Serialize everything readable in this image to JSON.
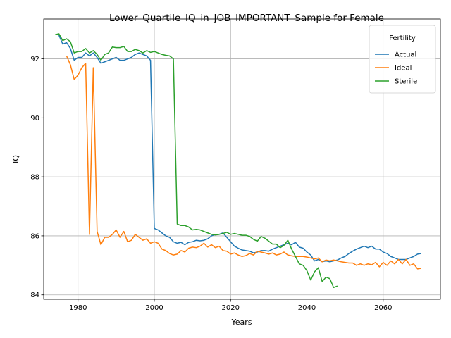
{
  "chart_data": {
    "type": "line",
    "title": "Lower_Quartile_IQ_in_JOB_IMPORTANT_Sample for Female",
    "xlabel": "Years",
    "ylabel": "IQ",
    "xlim": [
      1971,
      2075
    ],
    "ylim": [
      83.85,
      93.35
    ],
    "xticks": [
      1980,
      2000,
      2020,
      2040,
      2060
    ],
    "yticks": [
      84,
      86,
      88,
      90,
      92
    ],
    "grid": true,
    "legend": {
      "title": "Fertility",
      "placement": "top-right"
    },
    "series": [
      {
        "name": "Actual",
        "color": "#1f77b4",
        "x": [
          1975,
          1976,
          1977,
          1978,
          1979,
          1980,
          1981,
          1982,
          1983,
          1984,
          1985,
          1986,
          1987,
          1988,
          1989,
          1990,
          1991,
          1992,
          1993,
          1994,
          1995,
          1996,
          1997,
          1998,
          1999,
          2000,
          2001,
          2002,
          2003,
          2004,
          2005,
          2006,
          2007,
          2008,
          2009,
          2010,
          2011,
          2012,
          2013,
          2014,
          2015,
          2016,
          2017,
          2018,
          2019,
          2020,
          2021,
          2022,
          2023,
          2024,
          2025,
          2026,
          2027,
          2028,
          2029,
          2030,
          2031,
          2032,
          2033,
          2034,
          2035,
          2036,
          2037,
          2038,
          2039,
          2040,
          2041,
          2042,
          2043,
          2044,
          2045,
          2046,
          2047,
          2048,
          2049,
          2050,
          2051,
          2052,
          2053,
          2054,
          2055,
          2056,
          2057,
          2058,
          2059,
          2060,
          2061,
          2062,
          2063,
          2064,
          2065,
          2066,
          2067,
          2068,
          2069,
          2070
        ],
        "values": [
          92.8,
          92.5,
          92.55,
          92.35,
          91.95,
          92.05,
          92.05,
          92.2,
          92.1,
          92.2,
          92.05,
          91.85,
          91.9,
          91.95,
          92.0,
          92.05,
          91.95,
          91.95,
          92.0,
          92.05,
          92.15,
          92.2,
          92.15,
          92.1,
          91.95,
          86.25,
          86.2,
          86.1,
          86.0,
          85.95,
          85.8,
          85.75,
          85.78,
          85.7,
          85.78,
          85.8,
          85.85,
          85.83,
          85.85,
          85.9,
          86.0,
          86.05,
          86.05,
          86.1,
          85.95,
          85.8,
          85.65,
          85.58,
          85.52,
          85.5,
          85.48,
          85.42,
          85.45,
          85.5,
          85.5,
          85.48,
          85.55,
          85.6,
          85.65,
          85.7,
          85.75,
          85.7,
          85.78,
          85.62,
          85.58,
          85.45,
          85.35,
          85.15,
          85.2,
          85.12,
          85.15,
          85.12,
          85.15,
          85.18,
          85.25,
          85.3,
          85.4,
          85.48,
          85.55,
          85.6,
          85.65,
          85.6,
          85.65,
          85.55,
          85.55,
          85.45,
          85.4,
          85.3,
          85.25,
          85.2,
          85.2,
          85.2,
          85.25,
          85.3,
          85.38,
          85.4
        ]
      },
      {
        "name": "Ideal",
        "color": "#ff7f0e",
        "x": [
          1977,
          1978,
          1979,
          1980,
          1981,
          1982,
          1983,
          1984,
          1985,
          1986,
          1987,
          1988,
          1989,
          1990,
          1991,
          1992,
          1993,
          1994,
          1995,
          1996,
          1997,
          1998,
          1999,
          2000,
          2001,
          2002,
          2003,
          2004,
          2005,
          2006,
          2007,
          2008,
          2009,
          2010,
          2011,
          2012,
          2013,
          2014,
          2015,
          2016,
          2017,
          2018,
          2019,
          2020,
          2021,
          2022,
          2023,
          2024,
          2025,
          2026,
          2027,
          2028,
          2029,
          2030,
          2031,
          2032,
          2033,
          2034,
          2035,
          2036,
          2037,
          2038,
          2039,
          2040,
          2041,
          2042,
          2043,
          2044,
          2045,
          2046,
          2047,
          2048,
          2049,
          2050,
          2051,
          2052,
          2053,
          2054,
          2055,
          2056,
          2057,
          2058,
          2059,
          2060,
          2061,
          2062,
          2063,
          2064,
          2065,
          2066,
          2067,
          2068,
          2069,
          2070
        ],
        "values": [
          92.1,
          91.8,
          91.3,
          91.45,
          91.7,
          91.85,
          86.05,
          91.7,
          86.15,
          85.7,
          85.95,
          85.95,
          86.05,
          86.2,
          85.95,
          86.15,
          85.8,
          85.85,
          86.05,
          85.95,
          85.85,
          85.9,
          85.75,
          85.8,
          85.75,
          85.55,
          85.5,
          85.4,
          85.35,
          85.38,
          85.5,
          85.45,
          85.58,
          85.62,
          85.6,
          85.65,
          85.75,
          85.62,
          85.7,
          85.6,
          85.65,
          85.5,
          85.48,
          85.38,
          85.42,
          85.35,
          85.3,
          85.33,
          85.4,
          85.35,
          85.48,
          85.45,
          85.42,
          85.38,
          85.42,
          85.35,
          85.38,
          85.45,
          85.35,
          85.32,
          85.3,
          85.3,
          85.3,
          85.28,
          85.25,
          85.22,
          85.25,
          85.12,
          85.18,
          85.15,
          85.18,
          85.15,
          85.12,
          85.1,
          85.08,
          85.08,
          85.0,
          85.05,
          85.0,
          85.05,
          85.02,
          85.1,
          84.95,
          85.1,
          85.0,
          85.15,
          85.05,
          85.2,
          85.05,
          85.2,
          85.0,
          85.05,
          84.88,
          84.9
        ]
      },
      {
        "name": "Sterile",
        "color": "#2ca02c",
        "x": [
          1974,
          1975,
          1976,
          1977,
          1978,
          1979,
          1980,
          1981,
          1982,
          1983,
          1984,
          1985,
          1986,
          1987,
          1988,
          1989,
          1990,
          1991,
          1992,
          1993,
          1994,
          1995,
          1996,
          1997,
          1998,
          1999,
          2000,
          2001,
          2002,
          2003,
          2004,
          2005,
          2006,
          2007,
          2008,
          2009,
          2010,
          2011,
          2012,
          2013,
          2014,
          2015,
          2016,
          2017,
          2018,
          2019,
          2020,
          2021,
          2022,
          2023,
          2024,
          2025,
          2026,
          2027,
          2028,
          2029,
          2030,
          2031,
          2032,
          2033,
          2034,
          2035,
          2036,
          2037,
          2038,
          2039,
          2040,
          2041,
          2042,
          2043,
          2044,
          2045,
          2046,
          2047,
          2048
        ],
        "values": [
          92.82,
          92.85,
          92.62,
          92.68,
          92.58,
          92.2,
          92.25,
          92.25,
          92.35,
          92.2,
          92.28,
          92.15,
          91.95,
          92.15,
          92.2,
          92.4,
          92.38,
          92.38,
          92.42,
          92.25,
          92.25,
          92.32,
          92.28,
          92.2,
          92.28,
          92.22,
          92.25,
          92.2,
          92.15,
          92.12,
          92.1,
          92.0,
          86.4,
          86.35,
          86.35,
          86.3,
          86.2,
          86.22,
          86.2,
          86.15,
          86.1,
          86.05,
          86.03,
          86.05,
          86.08,
          86.12,
          86.05,
          86.08,
          86.05,
          86.02,
          86.02,
          85.98,
          85.88,
          85.82,
          85.98,
          85.92,
          85.82,
          85.72,
          85.72,
          85.6,
          85.68,
          85.85,
          85.55,
          85.3,
          85.05,
          85.0,
          84.82,
          84.5,
          84.78,
          84.92,
          84.45,
          84.6,
          84.55,
          84.25,
          84.3
        ]
      }
    ]
  }
}
